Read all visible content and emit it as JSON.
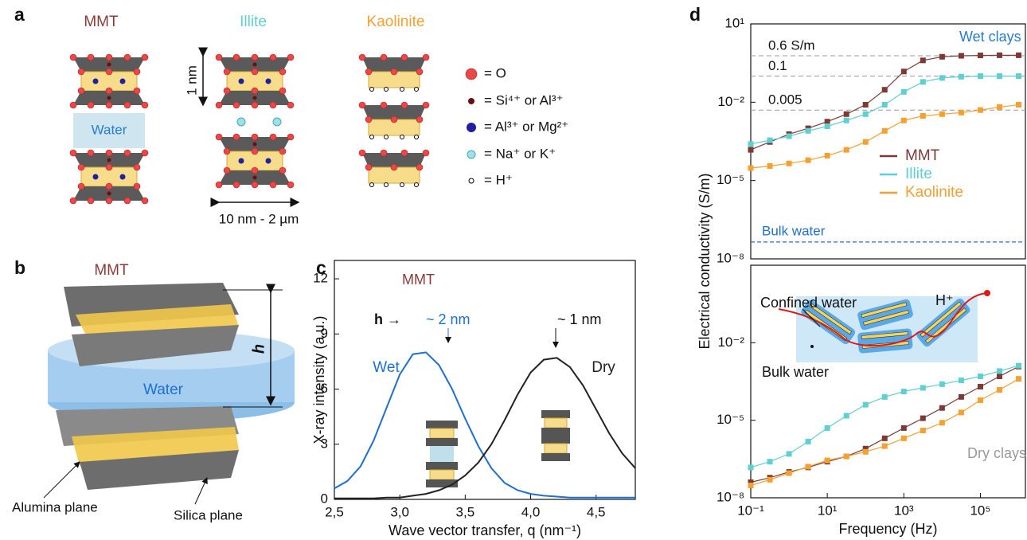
{
  "panel_labels": [
    "a",
    "b",
    "c",
    "d"
  ],
  "panel_a": {
    "titles": [
      "MMT",
      "Illite",
      "Kaolinite"
    ],
    "water": "Water",
    "thickness": "1 nm",
    "lateral_size": "10 nm - 2 µm",
    "legend": [
      "= O",
      "= Si⁴⁺ or Al³⁺",
      "= Al³⁺ or Mg²⁺",
      "= Na⁺ or K⁺",
      "= H⁺"
    ]
  },
  "panel_b": {
    "title": "MMT",
    "water": "Water",
    "spacing": "h",
    "labels": [
      "Alumina plane",
      "Silica plane"
    ]
  },
  "chart_data": [
    {
      "type": "line",
      "annotations": [
        "MMT",
        "h →",
        "~ 2 nm",
        "~ 1 nm"
      ],
      "x_label": "Wave vector transfer, q (nm⁻¹)",
      "y_label": "X-ray intensity (a.u.)",
      "x": [
        2.5,
        2.6,
        2.7,
        2.8,
        2.9,
        3.0,
        3.1,
        3.2,
        3.3,
        3.4,
        3.5,
        3.6,
        3.7,
        3.8,
        3.9,
        4.0,
        4.1,
        4.2,
        4.3,
        4.4,
        4.5,
        4.6,
        4.7,
        4.8
      ],
      "series": [
        {
          "name": "Wet",
          "color": "#1f6fd1",
          "values": [
            0.6,
            1.0,
            1.8,
            3.2,
            5.0,
            6.8,
            7.9,
            8.0,
            7.3,
            6.0,
            4.4,
            2.9,
            1.7,
            0.9,
            0.5,
            0.3,
            0.2,
            0.15,
            0.1,
            0.1,
            0.1,
            0.1,
            0.1,
            0.1
          ]
        },
        {
          "name": "Dry",
          "color": "#222222",
          "values": [
            0.05,
            0.05,
            0.05,
            0.05,
            0.1,
            0.1,
            0.2,
            0.3,
            0.5,
            0.8,
            1.3,
            2.0,
            3.0,
            4.3,
            5.7,
            6.9,
            7.6,
            7.7,
            7.2,
            6.2,
            4.9,
            3.6,
            2.5,
            1.7
          ]
        }
      ],
      "xlim": [
        2.5,
        4.8
      ],
      "ylim": [
        0,
        13
      ],
      "xticks": [
        {
          "value": 2.5,
          "label": "2,5"
        },
        {
          "value": 3.0,
          "label": "3,0"
        },
        {
          "value": 3.5,
          "label": "3,5"
        },
        {
          "value": 4.0,
          "label": "4,0"
        },
        {
          "value": 4.5,
          "label": "4,5"
        }
      ],
      "yticks": [
        0,
        3,
        6,
        9,
        12
      ]
    },
    {
      "type": "line",
      "markers": true,
      "log_x": true,
      "log_y": true,
      "annotations": [
        "Wet clays"
      ],
      "y_label": "Electrical conductivity (S/m)",
      "legend": "right",
      "x": [
        0.1,
        0.316,
        1,
        3.16,
        10,
        31.6,
        100,
        316,
        1000,
        3160,
        10000,
        31600,
        100000,
        316000,
        1000000
      ],
      "series": [
        {
          "name": "MMT",
          "color": "#7b3a36",
          "values": [
            0.00015,
            0.0003,
            0.0006,
            0.001,
            0.0018,
            0.0035,
            0.008,
            0.03,
            0.15,
            0.4,
            0.55,
            0.6,
            0.62,
            0.63,
            0.63
          ]
        },
        {
          "name": "Illite",
          "color": "#5fcfcf",
          "values": [
            0.00025,
            0.00035,
            0.0005,
            0.0008,
            0.0012,
            0.002,
            0.0035,
            0.008,
            0.025,
            0.06,
            0.085,
            0.095,
            0.1,
            0.1,
            0.1
          ]
        },
        {
          "name": "Kaolinite",
          "color": "#f5a030",
          "values": [
            3e-05,
            3.6e-05,
            4.5e-05,
            6e-05,
            9e-05,
            0.00015,
            0.0003,
            0.0008,
            0.002,
            0.003,
            0.0035,
            0.004,
            0.005,
            0.0065,
            0.008
          ]
        }
      ],
      "xlim": [
        0.1,
        1500000
      ],
      "ylim": [
        1e-08,
        10
      ],
      "yticks": [
        {
          "value": 1e-08,
          "label": "10⁻⁸"
        },
        {
          "value": 1e-05,
          "label": "10⁻⁵"
        },
        {
          "value": 0.01,
          "label": "10⁻²"
        },
        {
          "value": 10,
          "label": "10¹"
        }
      ],
      "reference_lines": [
        {
          "value": 0.6,
          "label": "0.6 S/m"
        },
        {
          "value": 0.1,
          "label": "0.1"
        },
        {
          "value": 0.005,
          "label": "0.005"
        }
      ],
      "bulk_water": {
        "value": 4.4e-08,
        "label": "Bulk water",
        "color": "#1f6fd1"
      }
    },
    {
      "type": "line",
      "markers": true,
      "log_x": true,
      "log_y": true,
      "annotations": [
        "Dry clays",
        "Confined water",
        "H⁺",
        "Bulk water"
      ],
      "x_label": "Frequency (Hz)",
      "x": [
        0.1,
        0.316,
        1,
        3.16,
        10,
        31.6,
        100,
        316,
        1000,
        3160,
        10000,
        31600,
        100000,
        316000,
        1000000
      ],
      "series": [
        {
          "color": "#7b3a36",
          "values": [
            4e-08,
            6e-08,
            1e-07,
            1.5e-07,
            2.5e-07,
            4e-07,
            8e-07,
            2e-06,
            5e-06,
            1.2e-05,
            3e-05,
            8e-05,
            0.0002,
            0.0005,
            0.0012
          ]
        },
        {
          "color": "#5fcfcf",
          "values": [
            1.5e-07,
            2.5e-07,
            5e-07,
            1.5e-06,
            5e-06,
            1.5e-05,
            4e-05,
            8e-05,
            0.00013,
            0.00018,
            0.00025,
            0.00035,
            0.0005,
            0.0008,
            0.0013
          ]
        },
        {
          "color": "#f5a030",
          "values": [
            3e-08,
            5e-08,
            9e-08,
            1.6e-07,
            2.8e-07,
            4e-07,
            6e-07,
            1e-06,
            2e-06,
            4e-06,
            8e-06,
            2e-05,
            6e-05,
            0.00015,
            0.0004
          ]
        }
      ],
      "xlim": [
        0.1,
        1500000
      ],
      "ylim": [
        1e-08,
        10
      ],
      "xticks": [
        {
          "value": 0.1,
          "label": "10⁻¹"
        },
        {
          "value": 10,
          "label": "10¹"
        },
        {
          "value": 1000,
          "label": "10³"
        },
        {
          "value": 100000,
          "label": "10⁵"
        }
      ],
      "yticks": [
        {
          "value": 1e-08,
          "label": "10⁻⁸"
        },
        {
          "value": 1e-05,
          "label": "10⁻⁵"
        },
        {
          "value": 0.01,
          "label": "10⁻²"
        }
      ]
    }
  ]
}
